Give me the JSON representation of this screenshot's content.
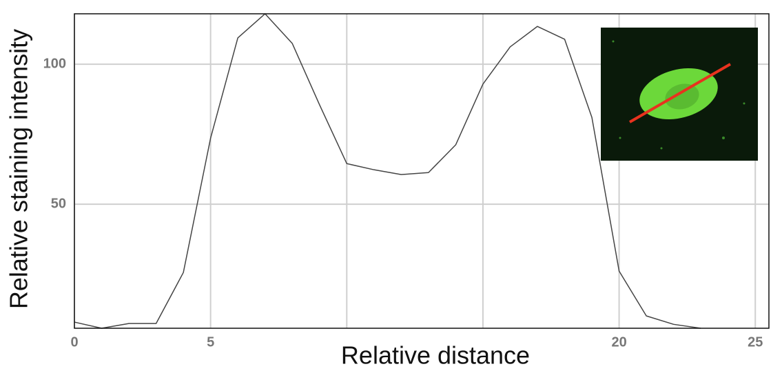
{
  "chart_data": {
    "type": "line",
    "x_label": "Relative distance",
    "y_label": "Relative staining intensity",
    "x": [
      0,
      1,
      2,
      3,
      4,
      5,
      6,
      7,
      8,
      9,
      10,
      11,
      12,
      13,
      14,
      15,
      16,
      17,
      18,
      19,
      20,
      21,
      22,
      23
    ],
    "series": [
      {
        "color": "#444444",
        "values": [
          7.9,
          5.7,
          7.4,
          7.4,
          25.6,
          73.6,
          109.4,
          118,
          107.4,
          85.5,
          64.5,
          62.3,
          60.6,
          61.3,
          71.2,
          92.9,
          106.2,
          113.5,
          108.9,
          81,
          26.1,
          10.1,
          7.1,
          5.7
        ]
      }
    ],
    "xlim": [
      0,
      25.5
    ],
    "ylim": [
      5.7,
      118
    ],
    "xticks": [
      0,
      5,
      {
        "value": 10,
        "label": null
      },
      {
        "value": 15,
        "label": null
      },
      20,
      25
    ],
    "yticks": [
      50,
      100
    ],
    "grid": true
  }
}
